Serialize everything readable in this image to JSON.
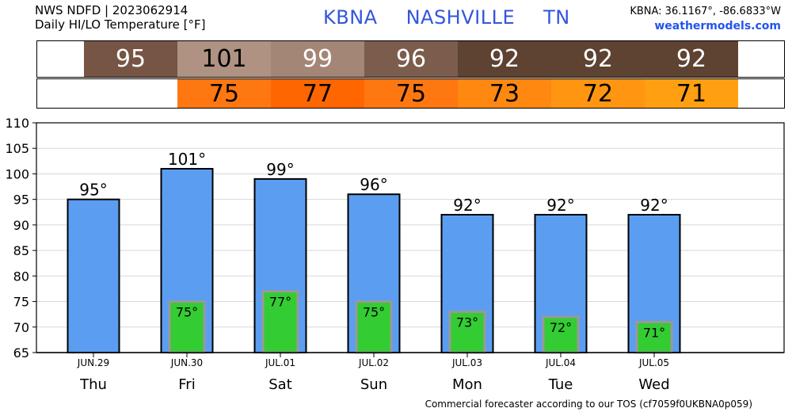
{
  "header": {
    "line1": "NWS NDFD | 2023062914",
    "line2": "Daily HI/LO Temperature [°F]",
    "station": "KBNA",
    "city": "NASHVILLE",
    "state": "TN",
    "coords": "KBNA: 36.1167°, -86.6833°W",
    "site": "weathermodels.com"
  },
  "hi_band": {
    "values": [
      "95",
      "101",
      "99",
      "96",
      "92",
      "92",
      "92"
    ],
    "colors": [
      "#765545",
      "#af9282",
      "#a48676",
      "#7c5c4c",
      "#5e4232",
      "#5e4232",
      "#5e4232"
    ],
    "text_colors": [
      "#ffffff",
      "#000000",
      "#ffffff",
      "#ffffff",
      "#ffffff",
      "#ffffff",
      "#ffffff"
    ]
  },
  "lo_band": {
    "values": [
      "75",
      "77",
      "75",
      "73",
      "72",
      "71"
    ],
    "colors": [
      "#ff7711",
      "#ff6600",
      "#ff7711",
      "#ff8811",
      "#ff9511",
      "#ff9f11"
    ]
  },
  "chart_data": {
    "type": "bar",
    "categories": [
      "Thu",
      "Fri",
      "Sat",
      "Sun",
      "Mon",
      "Tue",
      "Wed"
    ],
    "dates": [
      "JUN.29",
      "JUN.30",
      "JUL.01",
      "JUL.02",
      "JUL.03",
      "JUL.04",
      "JUL.05"
    ],
    "series": [
      {
        "values": [
          95,
          101,
          99,
          96,
          92,
          92,
          92
        ],
        "labels": [
          "95°",
          "101°",
          "99°",
          "96°",
          "92°",
          "92°",
          "92°"
        ],
        "color": "#5b9ef1"
      },
      {
        "values": [
          null,
          75,
          77,
          75,
          73,
          72,
          71
        ],
        "labels": [
          "",
          "75°",
          "77°",
          "75°",
          "73°",
          "72°",
          "71°"
        ],
        "color": "#33cc33"
      }
    ],
    "yticks": [
      "65",
      "70",
      "75",
      "80",
      "85",
      "90",
      "95",
      "100",
      "105",
      "110"
    ],
    "ylim": [
      65,
      110
    ],
    "grid": true
  },
  "footer": "Commercial forecaster according to our TOS (cf7059f0UKBNA0p059)"
}
